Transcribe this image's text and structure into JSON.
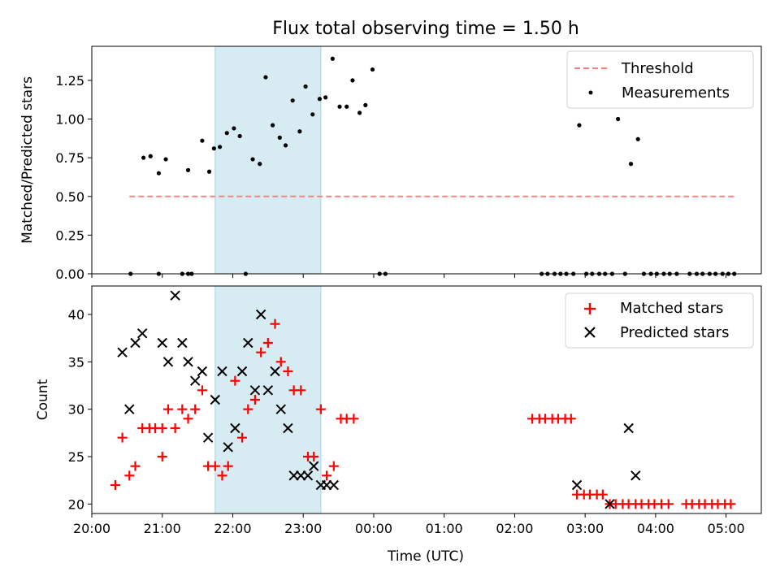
{
  "figure": {
    "title": "Flux total observing time = 1.50 h"
  },
  "chart_data": [
    {
      "type": "scatter",
      "title": "Flux total observing time = 1.50 h",
      "xlabel": "",
      "ylabel": "Matched/Predicted stars",
      "xlim": [
        "20:00",
        "05:30"
      ],
      "ylim": [
        0,
        1.47
      ],
      "xticks": [
        "20:00",
        "21:00",
        "22:00",
        "23:00",
        "00:00",
        "01:00",
        "02:00",
        "03:00",
        "04:00",
        "05:00"
      ],
      "yticks": [
        "0.00",
        "0.25",
        "0.50",
        "0.75",
        "1.00",
        "1.25"
      ],
      "ytick_values": [
        0,
        0.25,
        0.5,
        0.75,
        1.0,
        1.25
      ],
      "shaded_interval": [
        "21:45",
        "23:15"
      ],
      "legend": {
        "placement": "top-right",
        "entries": [
          "Threshold",
          "Measurements"
        ]
      },
      "series": [
        {
          "name": "Threshold",
          "style": "dashed-line",
          "color": "#ff8080",
          "points": [
            [
              "20:32",
              0.5
            ],
            [
              "05:07",
              0.5
            ]
          ]
        },
        {
          "name": "Measurements",
          "style": "dot",
          "color": "#000000",
          "points": [
            [
              "20:33",
              0.0
            ],
            [
              "20:44",
              0.75
            ],
            [
              "20:50",
              0.76
            ],
            [
              "20:57",
              0.65
            ],
            [
              "21:03",
              0.74
            ],
            [
              "20:57",
              0.0
            ],
            [
              "21:17",
              0.0
            ],
            [
              "21:22",
              0.0
            ],
            [
              "21:25",
              0.0
            ],
            [
              "21:22",
              0.67
            ],
            [
              "21:34",
              0.86
            ],
            [
              "21:40",
              0.66
            ],
            [
              "21:44",
              0.81
            ],
            [
              "21:49",
              0.82
            ],
            [
              "21:55",
              0.91
            ],
            [
              "22:01",
              0.94
            ],
            [
              "22:06",
              0.89
            ],
            [
              "22:11",
              0.0
            ],
            [
              "22:17",
              0.74
            ],
            [
              "22:23",
              0.71
            ],
            [
              "22:28",
              1.27
            ],
            [
              "22:34",
              0.96
            ],
            [
              "22:40",
              0.88
            ],
            [
              "22:45",
              0.83
            ],
            [
              "22:51",
              1.12
            ],
            [
              "22:57",
              0.92
            ],
            [
              "23:02",
              1.21
            ],
            [
              "23:08",
              1.03
            ],
            [
              "23:14",
              1.13
            ],
            [
              "23:19",
              1.14
            ],
            [
              "23:25",
              1.39
            ],
            [
              "23:31",
              1.08
            ],
            [
              "23:37",
              1.08
            ],
            [
              "23:42",
              1.25
            ],
            [
              "23:48",
              1.04
            ],
            [
              "23:53",
              1.09
            ],
            [
              "23:59",
              1.32
            ],
            [
              "00:05",
              0.0
            ],
            [
              "00:10",
              0.0
            ],
            [
              "02:23",
              0.0
            ],
            [
              "02:28",
              0.0
            ],
            [
              "02:34",
              0.0
            ],
            [
              "02:39",
              0.0
            ],
            [
              "02:44",
              0.0
            ],
            [
              "02:50",
              0.0
            ],
            [
              "02:55",
              0.96
            ],
            [
              "03:01",
              0.0
            ],
            [
              "03:06",
              0.0
            ],
            [
              "03:12",
              0.0
            ],
            [
              "03:17",
              0.0
            ],
            [
              "03:23",
              0.0
            ],
            [
              "03:28",
              1.0
            ],
            [
              "03:34",
              0.0
            ],
            [
              "03:39",
              0.71
            ],
            [
              "03:45",
              0.87
            ],
            [
              "03:50",
              0.0
            ],
            [
              "03:56",
              0.0
            ],
            [
              "04:01",
              0.0
            ],
            [
              "04:07",
              0.0
            ],
            [
              "04:12",
              0.0
            ],
            [
              "04:18",
              0.0
            ],
            [
              "04:29",
              0.0
            ],
            [
              "04:35",
              0.0
            ],
            [
              "04:40",
              0.0
            ],
            [
              "04:46",
              0.0
            ],
            [
              "04:51",
              0.0
            ],
            [
              "04:57",
              0.0
            ],
            [
              "05:02",
              0.0
            ],
            [
              "05:07",
              0.0
            ]
          ]
        }
      ]
    },
    {
      "type": "scatter",
      "xlabel": "Time (UTC)",
      "ylabel": "Count",
      "xlim": [
        "20:00",
        "05:30"
      ],
      "ylim": [
        19,
        43
      ],
      "xticks": [
        "20:00",
        "21:00",
        "22:00",
        "23:00",
        "00:00",
        "01:00",
        "02:00",
        "03:00",
        "04:00",
        "05:00"
      ],
      "yticks": [
        "20",
        "25",
        "30",
        "35",
        "40"
      ],
      "ytick_values": [
        20,
        25,
        30,
        35,
        40
      ],
      "shaded_interval": [
        "21:45",
        "23:15"
      ],
      "legend": {
        "placement": "top-right",
        "entries": [
          "Matched stars",
          "Predicted stars"
        ]
      },
      "series": [
        {
          "name": "Matched stars",
          "marker": "plus",
          "color": "#ff0000",
          "points": [
            [
              "20:20",
              22
            ],
            [
              "20:26",
              27
            ],
            [
              "20:32",
              23
            ],
            [
              "20:37",
              24
            ],
            [
              "20:43",
              28
            ],
            [
              "20:49",
              28
            ],
            [
              "20:54",
              28
            ],
            [
              "21:00",
              28
            ],
            [
              "21:00",
              25
            ],
            [
              "21:05",
              30
            ],
            [
              "21:11",
              28
            ],
            [
              "21:17",
              30
            ],
            [
              "21:22",
              29
            ],
            [
              "21:28",
              30
            ],
            [
              "21:34",
              32
            ],
            [
              "21:39",
              24
            ],
            [
              "21:45",
              24
            ],
            [
              "21:51",
              23
            ],
            [
              "21:56",
              24
            ],
            [
              "22:02",
              33
            ],
            [
              "22:08",
              27
            ],
            [
              "22:13",
              30
            ],
            [
              "22:19",
              31
            ],
            [
              "22:24",
              36
            ],
            [
              "22:30",
              37
            ],
            [
              "22:36",
              39
            ],
            [
              "22:41",
              35
            ],
            [
              "22:47",
              34
            ],
            [
              "22:52",
              32
            ],
            [
              "22:58",
              32
            ],
            [
              "23:04",
              25
            ],
            [
              "23:09",
              25
            ],
            [
              "23:15",
              30
            ],
            [
              "23:20",
              23
            ],
            [
              "23:26",
              24
            ],
            [
              "23:32",
              29
            ],
            [
              "23:37",
              29
            ],
            [
              "23:43",
              29
            ],
            [
              "02:15",
              29
            ],
            [
              "02:21",
              29
            ],
            [
              "02:26",
              29
            ],
            [
              "02:32",
              29
            ],
            [
              "02:37",
              29
            ],
            [
              "02:43",
              29
            ],
            [
              "02:48",
              29
            ],
            [
              "02:53",
              21
            ],
            [
              "02:59",
              21
            ],
            [
              "03:04",
              21
            ],
            [
              "03:10",
              21
            ],
            [
              "03:15",
              21
            ],
            [
              "03:21",
              20
            ],
            [
              "03:26",
              20
            ],
            [
              "03:32",
              20
            ],
            [
              "03:37",
              20
            ],
            [
              "03:43",
              20
            ],
            [
              "03:48",
              20
            ],
            [
              "03:54",
              20
            ],
            [
              "03:59",
              20
            ],
            [
              "04:05",
              20
            ],
            [
              "04:11",
              20
            ],
            [
              "04:26",
              20
            ],
            [
              "04:31",
              20
            ],
            [
              "04:37",
              20
            ],
            [
              "04:42",
              20
            ],
            [
              "04:48",
              20
            ],
            [
              "04:53",
              20
            ],
            [
              "04:59",
              20
            ],
            [
              "05:04",
              20
            ]
          ]
        },
        {
          "name": "Predicted stars",
          "marker": "x",
          "color": "#000000",
          "points": [
            [
              "20:26",
              36
            ],
            [
              "20:32",
              30
            ],
            [
              "20:37",
              37
            ],
            [
              "20:43",
              38
            ],
            [
              "21:00",
              37
            ],
            [
              "21:05",
              35
            ],
            [
              "21:11",
              42
            ],
            [
              "21:17",
              37
            ],
            [
              "21:22",
              35
            ],
            [
              "21:28",
              33
            ],
            [
              "21:34",
              34
            ],
            [
              "21:39",
              27
            ],
            [
              "21:45",
              31
            ],
            [
              "21:51",
              34
            ],
            [
              "21:56",
              26
            ],
            [
              "22:02",
              28
            ],
            [
              "22:08",
              34
            ],
            [
              "22:13",
              37
            ],
            [
              "22:19",
              32
            ],
            [
              "22:24",
              40
            ],
            [
              "22:30",
              32
            ],
            [
              "22:36",
              34
            ],
            [
              "22:41",
              30
            ],
            [
              "22:47",
              28
            ],
            [
              "22:52",
              23
            ],
            [
              "22:58",
              23
            ],
            [
              "23:04",
              23
            ],
            [
              "23:09",
              24
            ],
            [
              "23:15",
              22
            ],
            [
              "23:20",
              22
            ],
            [
              "23:26",
              22
            ],
            [
              "02:53",
              22
            ],
            [
              "03:21",
              20
            ],
            [
              "03:37",
              28
            ],
            [
              "03:43",
              23
            ]
          ]
        }
      ]
    }
  ]
}
